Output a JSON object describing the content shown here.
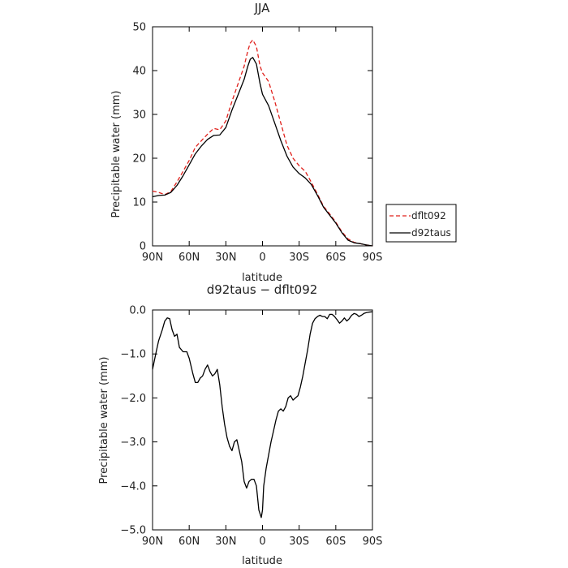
{
  "chart_data": [
    {
      "type": "line",
      "title": "JJA",
      "xlabel": "latitude",
      "ylabel": "Precipitable water (mm)",
      "xlim": [
        90,
        -90
      ],
      "ylim": [
        0,
        50
      ],
      "x_ticks": [
        90,
        60,
        30,
        0,
        -30,
        -60,
        -90
      ],
      "x_tick_labels": [
        "90N",
        "60N",
        "30N",
        "0",
        "30S",
        "60S",
        "90S"
      ],
      "y_ticks": [
        0,
        10,
        20,
        30,
        40,
        50
      ],
      "y_tick_labels": [
        "0",
        "10",
        "20",
        "30",
        "40",
        "50"
      ],
      "grid": false,
      "legend_position": "right, outside plot",
      "series": [
        {
          "name": "dflt092",
          "color": "#e0201b",
          "dash": "dashed",
          "x": [
            90,
            85,
            80,
            75,
            70,
            65,
            60,
            55,
            50,
            45,
            40,
            35,
            30,
            25,
            20,
            15,
            12,
            10,
            8,
            5,
            2,
            0,
            -5,
            -10,
            -15,
            -20,
            -25,
            -30,
            -35,
            -40,
            -45,
            -50,
            -55,
            -60,
            -65,
            -70,
            -75,
            -80,
            -85,
            -90
          ],
          "values": [
            12.5,
            12.2,
            11.7,
            12.4,
            14.6,
            17.0,
            19.5,
            22.5,
            24.0,
            25.5,
            26.8,
            26.5,
            28.5,
            33.0,
            37.0,
            41.0,
            44.5,
            46.3,
            47.0,
            45.5,
            41.0,
            39.5,
            37.5,
            33.0,
            28.0,
            23.0,
            20.0,
            18.3,
            17.0,
            14.5,
            11.8,
            9.0,
            7.3,
            5.4,
            3.2,
            1.6,
            0.8,
            0.5,
            0.2,
            0.0
          ]
        },
        {
          "name": "d92taus",
          "color": "#000000",
          "dash": "solid",
          "x": [
            90,
            85,
            80,
            75,
            70,
            65,
            60,
            55,
            50,
            45,
            40,
            35,
            30,
            25,
            20,
            15,
            12,
            10,
            8,
            5,
            2,
            0,
            -5,
            -10,
            -15,
            -20,
            -25,
            -30,
            -35,
            -40,
            -45,
            -50,
            -55,
            -60,
            -65,
            -70,
            -75,
            -80,
            -85,
            -90
          ],
          "values": [
            11.2,
            11.5,
            11.6,
            12.2,
            13.8,
            16.0,
            18.5,
            21.0,
            22.8,
            24.3,
            25.2,
            25.3,
            27.0,
            31.0,
            34.5,
            38.0,
            41.0,
            42.6,
            43.0,
            41.5,
            37.0,
            34.6,
            32.0,
            28.0,
            24.0,
            20.5,
            18.0,
            16.5,
            15.5,
            14.0,
            11.5,
            8.8,
            7.0,
            5.2,
            3.0,
            1.3,
            0.7,
            0.5,
            0.2,
            0.0
          ]
        }
      ]
    },
    {
      "type": "line",
      "title": "d92taus − dflt092",
      "xlabel": "latitude",
      "ylabel": "Precipitable water (mm)",
      "xlim": [
        90,
        -90
      ],
      "ylim": [
        -5,
        0
      ],
      "x_ticks": [
        90,
        60,
        30,
        0,
        -30,
        -60,
        -90
      ],
      "x_tick_labels": [
        "90N",
        "60N",
        "30N",
        "0",
        "30S",
        "60S",
        "90S"
      ],
      "y_ticks": [
        0,
        -1,
        -2,
        -3,
        -4,
        -5
      ],
      "y_tick_labels": [
        "0.0",
        "−1.0",
        "−2.0",
        "−3.0",
        "−4.0",
        "−5.0"
      ],
      "grid": false,
      "series": [
        {
          "color": "#000000",
          "dash": "solid",
          "x": [
            90,
            87,
            85,
            82,
            80,
            78,
            76,
            74,
            72,
            70,
            68,
            65,
            62,
            60,
            57,
            55,
            53,
            51,
            49,
            47,
            45,
            43,
            41,
            39,
            37,
            35,
            33,
            31,
            29,
            27,
            25,
            23,
            21,
            19,
            17,
            15,
            13,
            11,
            9,
            7,
            5,
            3,
            1,
            0,
            -1,
            -3,
            -5,
            -7,
            -9,
            -11,
            -13,
            -15,
            -17,
            -19,
            -21,
            -23,
            -25,
            -27,
            -29,
            -31,
            -33,
            -35,
            -37,
            -39,
            -41,
            -43,
            -45,
            -47,
            -49,
            -51,
            -53,
            -55,
            -57,
            -59,
            -61,
            -63,
            -65,
            -67,
            -69,
            -71,
            -73,
            -75,
            -77,
            -79,
            -81,
            -83,
            -85,
            -87,
            -90
          ],
          "values": [
            -1.35,
            -0.95,
            -0.7,
            -0.45,
            -0.25,
            -0.18,
            -0.2,
            -0.45,
            -0.6,
            -0.55,
            -0.85,
            -0.95,
            -0.95,
            -1.1,
            -1.45,
            -1.65,
            -1.65,
            -1.55,
            -1.5,
            -1.35,
            -1.25,
            -1.4,
            -1.5,
            -1.45,
            -1.35,
            -1.7,
            -2.2,
            -2.6,
            -2.9,
            -3.1,
            -3.2,
            -3.0,
            -2.95,
            -3.2,
            -3.45,
            -3.9,
            -4.05,
            -3.9,
            -3.85,
            -3.85,
            -4.0,
            -4.55,
            -4.72,
            -4.55,
            -4.0,
            -3.6,
            -3.3,
            -3.0,
            -2.75,
            -2.5,
            -2.3,
            -2.25,
            -2.3,
            -2.2,
            -2.0,
            -1.95,
            -2.05,
            -2.0,
            -1.95,
            -1.75,
            -1.5,
            -1.2,
            -0.9,
            -0.55,
            -0.3,
            -0.2,
            -0.15,
            -0.12,
            -0.15,
            -0.15,
            -0.2,
            -0.1,
            -0.1,
            -0.15,
            -0.22,
            -0.3,
            -0.25,
            -0.18,
            -0.25,
            -0.2,
            -0.12,
            -0.08,
            -0.1,
            -0.15,
            -0.12,
            -0.08,
            -0.06,
            -0.05,
            -0.04
          ]
        }
      ]
    }
  ]
}
